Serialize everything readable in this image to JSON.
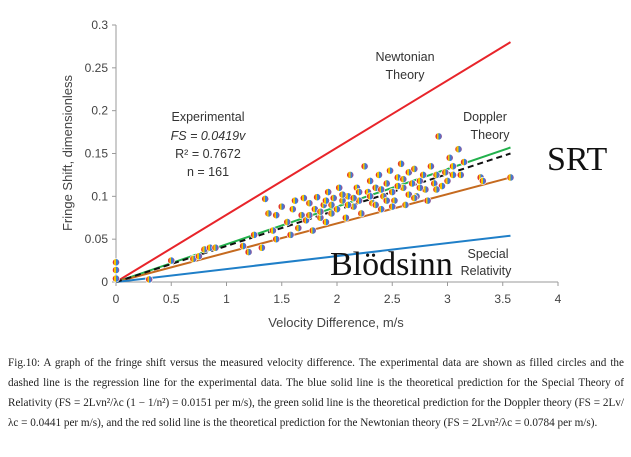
{
  "chart_data": {
    "type": "scatter",
    "xlabel": "Velocity Difference, m/s",
    "ylabel": "Fringe Shift, dimensionless",
    "xlim": [
      0,
      4
    ],
    "ylim": [
      0,
      0.3
    ],
    "x_ticks": [
      "0",
      "0.5",
      "1",
      "1.5",
      "2",
      "2.5",
      "3",
      "3.5",
      "4"
    ],
    "y_ticks": [
      "0",
      "0.05",
      "0.1",
      "0.15",
      "0.2",
      "0.25",
      "0.3"
    ],
    "grid": false,
    "lines": [
      {
        "name": "Newtonian Theory",
        "style": "solid",
        "color": "#e8242a",
        "x": [
          0,
          3.57
        ],
        "y": [
          0,
          0.28
        ]
      },
      {
        "name": "Doppler Theory",
        "style": "solid",
        "color": "#22b14c",
        "x": [
          0,
          3.57
        ],
        "y": [
          0,
          0.157
        ]
      },
      {
        "name": "SRT",
        "style": "solid",
        "color": "#c56a1f",
        "x": [
          0,
          3.57
        ],
        "y": [
          0,
          0.122
        ]
      },
      {
        "name": "Special Relativity",
        "style": "solid",
        "color": "#1f7fc8",
        "x": [
          0,
          3.57
        ],
        "y": [
          0,
          0.054
        ]
      },
      {
        "name": "regression",
        "style": "dashed",
        "color": "#111111",
        "x": [
          0,
          3.57
        ],
        "y": [
          0,
          0.15
        ]
      }
    ],
    "annotations": {
      "newtonian": [
        "Newtonian",
        "Theory"
      ],
      "doppler": [
        "Doppler",
        "Theory"
      ],
      "special": [
        "Special",
        "Relativity"
      ],
      "experimental": [
        "Experimental",
        "FS = 0.0419v",
        "R² = 0.7672",
        "n = 161"
      ],
      "srt": "SRT",
      "blodsinn": "Blödsinn"
    },
    "points": [
      [
        0.0,
        0.023
      ],
      [
        0.0,
        0.014
      ],
      [
        0.0,
        0.004
      ],
      [
        0.3,
        0.003
      ],
      [
        0.5,
        0.025
      ],
      [
        0.7,
        0.027
      ],
      [
        0.75,
        0.03
      ],
      [
        0.8,
        0.038
      ],
      [
        0.85,
        0.04
      ],
      [
        0.9,
        0.04
      ],
      [
        1.15,
        0.042
      ],
      [
        1.2,
        0.035
      ],
      [
        1.25,
        0.055
      ],
      [
        1.32,
        0.04
      ],
      [
        1.35,
        0.097
      ],
      [
        1.38,
        0.08
      ],
      [
        1.42,
        0.06
      ],
      [
        1.45,
        0.05
      ],
      [
        1.45,
        0.078
      ],
      [
        1.5,
        0.088
      ],
      [
        1.55,
        0.07
      ],
      [
        1.58,
        0.055
      ],
      [
        1.6,
        0.085
      ],
      [
        1.62,
        0.095
      ],
      [
        1.65,
        0.063
      ],
      [
        1.68,
        0.078
      ],
      [
        1.7,
        0.098
      ],
      [
        1.72,
        0.072
      ],
      [
        1.75,
        0.092
      ],
      [
        1.78,
        0.06
      ],
      [
        1.8,
        0.085
      ],
      [
        1.82,
        0.099
      ],
      [
        1.85,
        0.075
      ],
      [
        1.88,
        0.09
      ],
      [
        1.9,
        0.07
      ],
      [
        1.92,
        0.105
      ],
      [
        1.95,
        0.08
      ],
      [
        1.97,
        0.098
      ],
      [
        2.0,
        0.085
      ],
      [
        2.02,
        0.11
      ],
      [
        2.05,
        0.095
      ],
      [
        2.08,
        0.075
      ],
      [
        2.1,
        0.1
      ],
      [
        2.12,
        0.125
      ],
      [
        2.15,
        0.088
      ],
      [
        2.18,
        0.11
      ],
      [
        2.2,
        0.095
      ],
      [
        2.22,
        0.08
      ],
      [
        2.25,
        0.135
      ],
      [
        2.28,
        0.105
      ],
      [
        2.3,
        0.118
      ],
      [
        2.32,
        0.092
      ],
      [
        2.35,
        0.11
      ],
      [
        2.38,
        0.125
      ],
      [
        2.4,
        0.085
      ],
      [
        2.42,
        0.1
      ],
      [
        2.45,
        0.115
      ],
      [
        2.48,
        0.13
      ],
      [
        2.5,
        0.105
      ],
      [
        2.52,
        0.095
      ],
      [
        2.55,
        0.122
      ],
      [
        2.58,
        0.138
      ],
      [
        2.6,
        0.11
      ],
      [
        2.62,
        0.09
      ],
      [
        2.65,
        0.128
      ],
      [
        2.68,
        0.115
      ],
      [
        2.7,
        0.132
      ],
      [
        2.72,
        0.1
      ],
      [
        2.75,
        0.118
      ],
      [
        2.78,
        0.125
      ],
      [
        2.8,
        0.108
      ],
      [
        2.82,
        0.095
      ],
      [
        2.85,
        0.135
      ],
      [
        2.88,
        0.115
      ],
      [
        2.9,
        0.125
      ],
      [
        2.92,
        0.17
      ],
      [
        2.95,
        0.112
      ],
      [
        2.98,
        0.128
      ],
      [
        3.0,
        0.118
      ],
      [
        3.02,
        0.145
      ],
      [
        3.05,
        0.135
      ],
      [
        3.1,
        0.155
      ],
      [
        3.12,
        0.125
      ],
      [
        3.15,
        0.14
      ],
      [
        3.3,
        0.122
      ],
      [
        3.32,
        0.118
      ],
      [
        3.57,
        0.122
      ],
      [
        2.3,
        0.1
      ],
      [
        2.45,
        0.095
      ],
      [
        2.1,
        0.09
      ],
      [
        1.95,
        0.09
      ],
      [
        2.6,
        0.12
      ],
      [
        2.75,
        0.11
      ],
      [
        2.4,
        0.108
      ],
      [
        2.55,
        0.112
      ],
      [
        2.2,
        0.105
      ],
      [
        2.05,
        0.102
      ],
      [
        1.85,
        0.082
      ],
      [
        2.65,
        0.102
      ],
      [
        2.9,
        0.108
      ],
      [
        3.05,
        0.125
      ],
      [
        2.35,
        0.09
      ],
      [
        2.5,
        0.088
      ],
      [
        2.7,
        0.098
      ],
      [
        2.15,
        0.098
      ],
      [
        1.75,
        0.078
      ],
      [
        1.9,
        0.095
      ]
    ]
  },
  "caption": "Fig.10: A graph of the fringe shift versus the measured velocity difference. The experimental data are shown as filled circles and the dashed line is the regression line for the experimental data. The blue solid line is the theoretical prediction for the Special Theory of Relativity (FS = 2Lvn²/λc (1 − 1/n²) = 0.0151 per m/s), the green solid line is the theoretical prediction for the Doppler theory (FS = 2Lv/λc = 0.0441 per m/s), and the red solid line is the theoretical prediction for the Newtonian theory (FS = 2Lvn²/λc = 0.0784 per m/s)."
}
